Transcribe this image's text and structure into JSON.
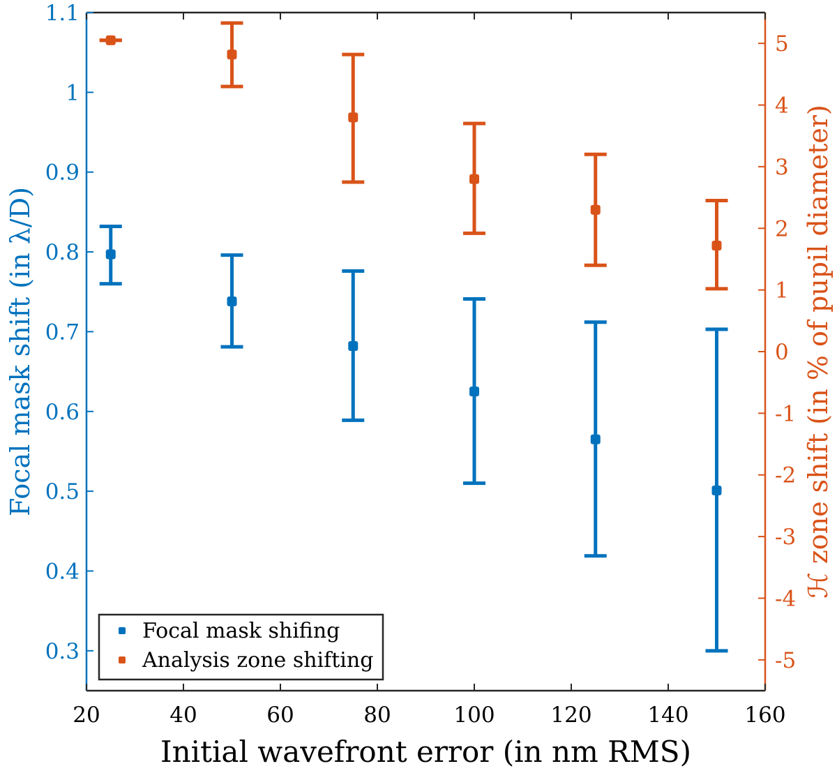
{
  "chart_data": {
    "type": "scatter",
    "xlabel": "Initial wavefront error (in nm RMS)",
    "ylabel_left": "Focal mask shift (in λ/D)",
    "ylabel_right": "ℋ zone shift (in % of pupil diameter)",
    "xlim": [
      20,
      160
    ],
    "ylim_left": [
      0.25,
      1.1
    ],
    "ylim_right": [
      -5.5,
      5.5
    ],
    "x_ticks": [
      20,
      40,
      60,
      80,
      100,
      120,
      140,
      160
    ],
    "y_ticks_left": [
      0.3,
      0.4,
      0.5,
      0.6,
      0.7,
      0.8,
      0.9,
      1,
      1.1
    ],
    "y_ticks_right": [
      -5,
      -4,
      -3,
      -2,
      -1,
      0,
      1,
      2,
      3,
      4,
      5
    ],
    "grid": false,
    "legend_position": "bottom-left",
    "series": [
      {
        "name": "Focal mask shifing",
        "axis": "left",
        "color": "#0072BD",
        "x": [
          25,
          50,
          75,
          100,
          125,
          150
        ],
        "y": [
          0.797,
          0.738,
          0.682,
          0.625,
          0.565,
          0.501
        ],
        "y_low": [
          0.76,
          0.681,
          0.589,
          0.51,
          0.419,
          0.3
        ],
        "y_high": [
          0.832,
          0.796,
          0.776,
          0.741,
          0.712,
          0.703
        ]
      },
      {
        "name": "Analysis zone shifting",
        "axis": "right",
        "color": "#D95319",
        "x": [
          25,
          50,
          75,
          100,
          125,
          150
        ],
        "y": [
          5.05,
          4.82,
          3.8,
          2.8,
          2.3,
          1.72
        ],
        "y_low": [
          5.05,
          4.3,
          2.75,
          1.92,
          1.4,
          1.02
        ],
        "y_high": [
          5.05,
          5.33,
          4.82,
          3.7,
          3.2,
          2.45
        ]
      }
    ]
  }
}
